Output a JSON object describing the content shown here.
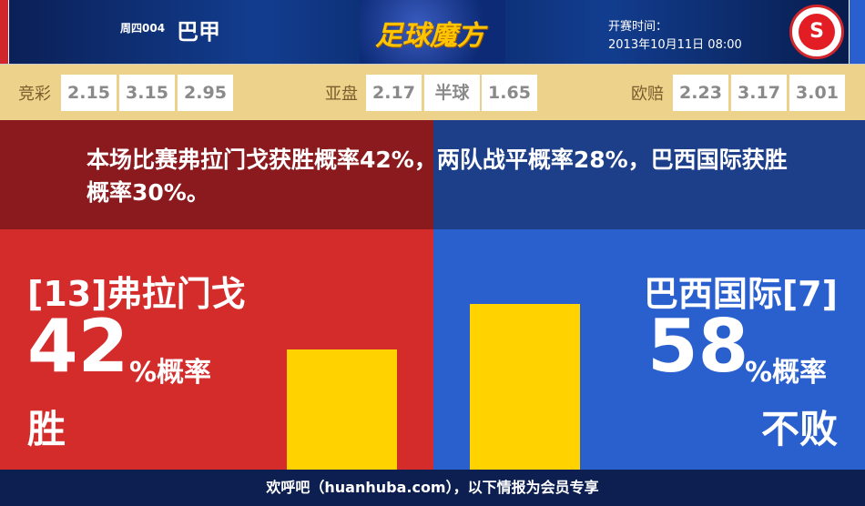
{
  "header": {
    "match_no": "周四004",
    "league": "巴甲",
    "logo_text": "足球魔方",
    "time_label": "开赛时间：",
    "time": "2013年10月11日 08:00",
    "badge_icon": "internacional-badge"
  },
  "odds": [
    {
      "label": "竞彩",
      "values": [
        "2.15",
        "3.15",
        "2.95"
      ]
    },
    {
      "label": "亚盘",
      "values": [
        "2.17",
        "半球",
        "1.65"
      ]
    },
    {
      "label": "欧赔",
      "values": [
        "2.23",
        "3.17",
        "3.01"
      ]
    }
  ],
  "summary": "本场比赛弗拉门戈获胜概率42%，两队战平概率28%，巴西国际获胜概率30%。",
  "home": {
    "team": "[13]弗拉门戈",
    "percent": "42",
    "unit": "%概率",
    "outcome": "胜",
    "value": 42,
    "color": "#d42b2b"
  },
  "away": {
    "team": "巴西国际[7]",
    "percent": "58",
    "unit": "%概率",
    "outcome": "不败",
    "value": 58,
    "color": "#2a5fce"
  },
  "footer": "欢呼吧（huanhuba.com），以下情报为会员专享"
}
